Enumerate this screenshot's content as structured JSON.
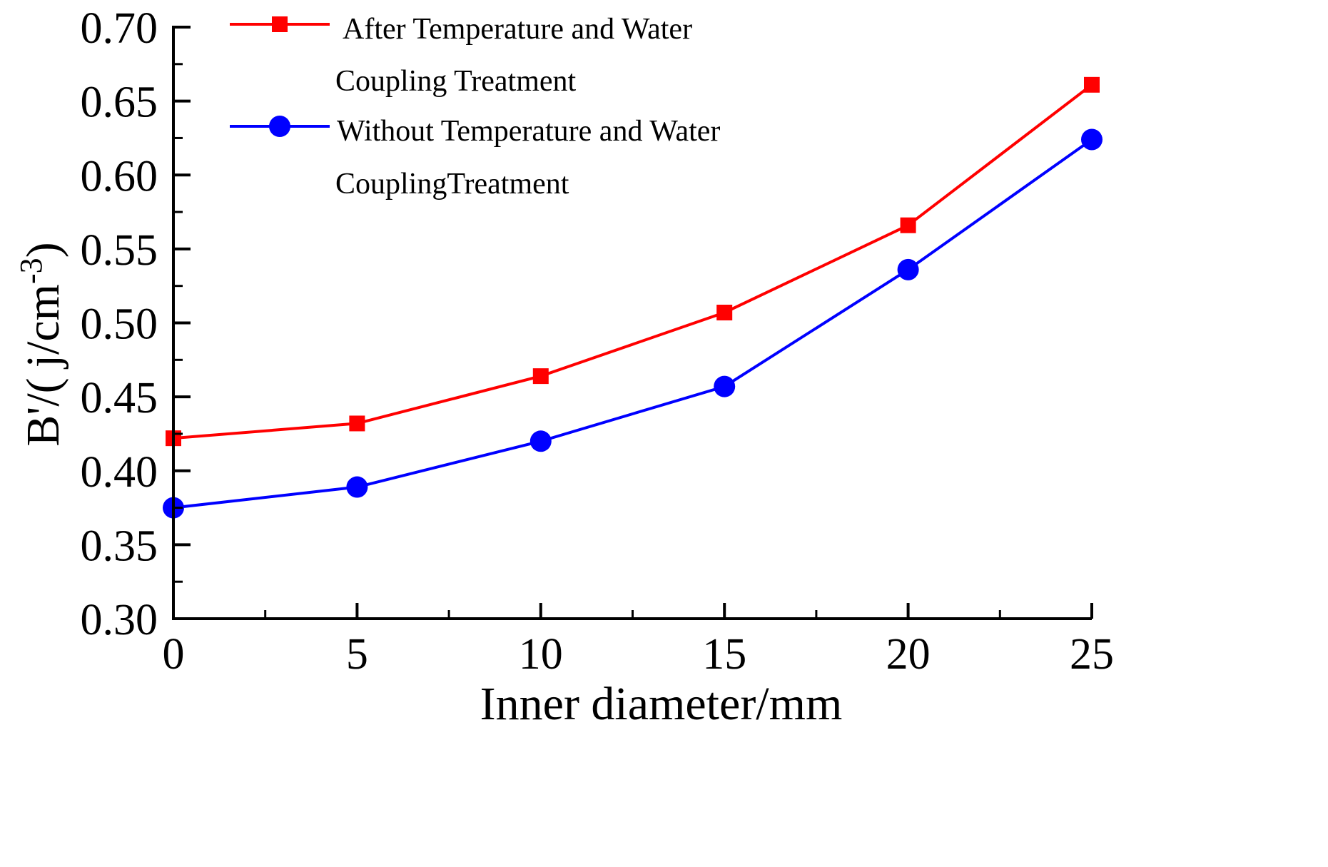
{
  "chart_data": {
    "type": "line",
    "title": "",
    "xlabel": "Inner diameter/mm",
    "ylabel": {
      "prefix": "B'/(",
      "unit": "j/cm",
      "exponent": "-3",
      "suffix": ")"
    },
    "x": [
      0,
      5,
      10,
      15,
      20,
      25
    ],
    "xlim": [
      0,
      25
    ],
    "ylim": [
      0.3,
      0.7
    ],
    "xticks": [
      0,
      5,
      10,
      15,
      20,
      25
    ],
    "xtick_labels": [
      "0",
      "5",
      "10",
      "15",
      "20",
      "25"
    ],
    "yticks": [
      0.3,
      0.35,
      0.4,
      0.45,
      0.5,
      0.55,
      0.6,
      0.65,
      0.7
    ],
    "ytick_labels": [
      "0.30",
      "0.35",
      "0.40",
      "0.45",
      "0.50",
      "0.55",
      "0.60",
      "0.65",
      "0.70"
    ],
    "grid": false,
    "legend_position": "top-left",
    "series": [
      {
        "name": "After Temperature and Water Coupling Treatment",
        "legend_lines": [
          "After Temperature and Water",
          "Coupling Treatment"
        ],
        "color": "#ff0000",
        "marker": "square",
        "values": [
          0.422,
          0.432,
          0.464,
          0.507,
          0.566,
          0.661
        ]
      },
      {
        "name": "Without Temperature and Water CouplingTreatment",
        "legend_lines": [
          "Without Temperature and Water",
          "CouplingTreatment"
        ],
        "color": "#0000ff",
        "marker": "circle",
        "values": [
          0.375,
          0.389,
          0.42,
          0.457,
          0.536,
          0.624
        ]
      }
    ]
  }
}
